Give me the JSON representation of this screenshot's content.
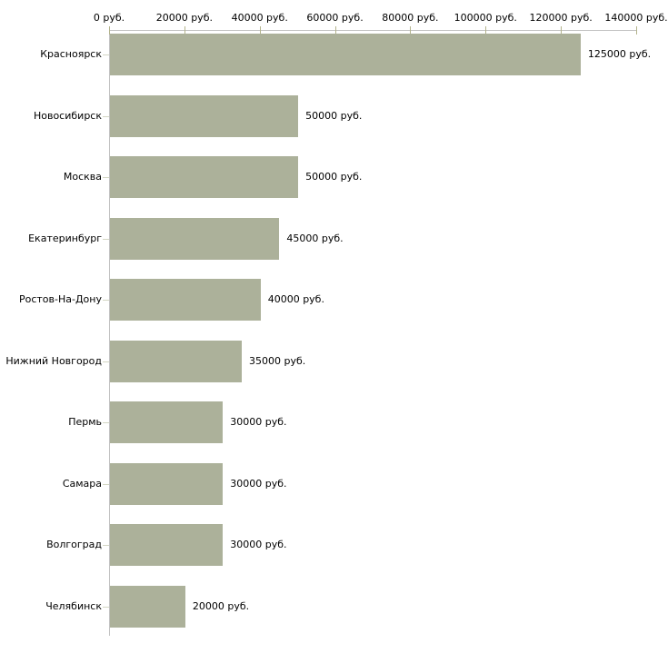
{
  "chart_data": {
    "type": "bar",
    "orientation": "horizontal",
    "title": "",
    "xlabel": "",
    "ylabel": "",
    "categories": [
      "Красноярск",
      "Новосибирск",
      "Москва",
      "Екатеринбург",
      "Ростов-На-Дону",
      "Нижний Новгород",
      "Пермь",
      "Самара",
      "Волгоград",
      "Челябинск"
    ],
    "values": [
      125000,
      50000,
      50000,
      45000,
      40000,
      35000,
      30000,
      30000,
      30000,
      20000
    ],
    "value_labels": [
      "125000 руб.",
      "50000 руб.",
      "50000 руб.",
      "45000 руб.",
      "40000 руб.",
      "35000 руб.",
      "30000 руб.",
      "30000 руб.",
      "30000 руб.",
      "20000 руб."
    ],
    "x_axis": {
      "position": "top",
      "min": 0,
      "max": 140000,
      "tick_step": 20000,
      "tick_labels": [
        "0 руб.",
        "20000 руб.",
        "40000 руб.",
        "60000 руб.",
        "80000 руб.",
        "100000 руб.",
        "120000 руб.",
        "140000 руб."
      ]
    },
    "grid": false,
    "legend": false,
    "colors": {
      "bar": "#acb19a",
      "axis_line": "#c2c2c2",
      "x_tick_mark": "#b3b38b",
      "y_tick_mark": "#d3d6c3",
      "label_text": "#000000",
      "background": "#ffffff"
    }
  }
}
